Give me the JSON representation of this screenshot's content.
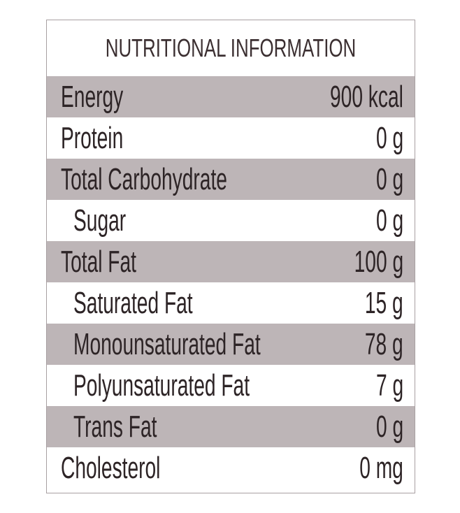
{
  "panel": {
    "title": "NUTRITIONAL INFORMATION",
    "colors": {
      "shaded_row": "#bdb5b7",
      "text": "#2d2426",
      "border": "#a8a0a2"
    },
    "rows": [
      {
        "label": "Energy",
        "value": "900 kcal",
        "indent": false,
        "shaded": true
      },
      {
        "label": "Protein",
        "value": "0 g",
        "indent": false,
        "shaded": false
      },
      {
        "label": "Total Carbohydrate",
        "value": "0 g",
        "indent": false,
        "shaded": true
      },
      {
        "label": "Sugar",
        "value": "0 g",
        "indent": true,
        "shaded": false
      },
      {
        "label": "Total Fat",
        "value": "100 g",
        "indent": false,
        "shaded": true
      },
      {
        "label": "Saturated Fat",
        "value": "15 g",
        "indent": true,
        "shaded": false
      },
      {
        "label": "Monounsaturated Fat",
        "value": "78 g",
        "indent": true,
        "shaded": true
      },
      {
        "label": "Polyunsaturated Fat",
        "value": "7 g",
        "indent": true,
        "shaded": false
      },
      {
        "label": "Trans Fat",
        "value": "0 g",
        "indent": true,
        "shaded": true
      },
      {
        "label": "Cholesterol",
        "value": "0 mg",
        "indent": false,
        "shaded": false
      }
    ]
  }
}
